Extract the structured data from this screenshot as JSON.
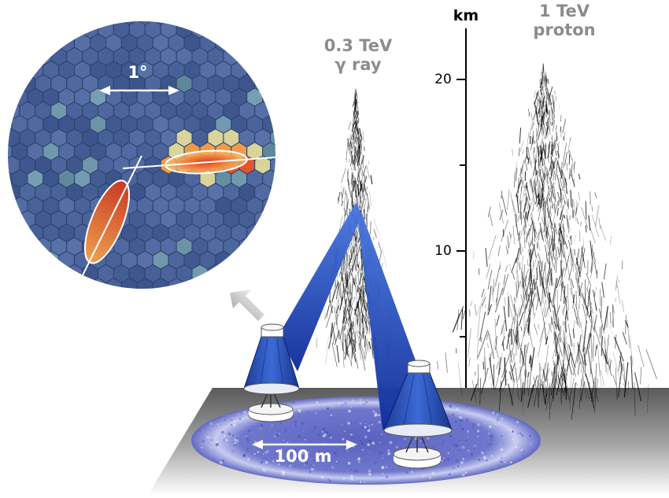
{
  "labels": {
    "gamma": [
      "0.3 TeV",
      "γ ray"
    ],
    "proton": [
      "1 TeV",
      "proton"
    ],
    "km_unit": "km",
    "scale_degree": "1°",
    "scale_distance": "100 m"
  },
  "altitude_axis": {
    "unit": "km",
    "tick_labels": [
      "10",
      "20"
    ]
  },
  "colors": {
    "camera_background": "#3a5480",
    "pixel_fill": "#4c6796",
    "pixel_edge": "#2c4168",
    "shower_hot": "#d6432a",
    "shower_warm": "#f2a35a",
    "cone_blue": "#2f58c8",
    "light_pool": "#6a72c8",
    "ground": "#9a9a9a"
  }
}
